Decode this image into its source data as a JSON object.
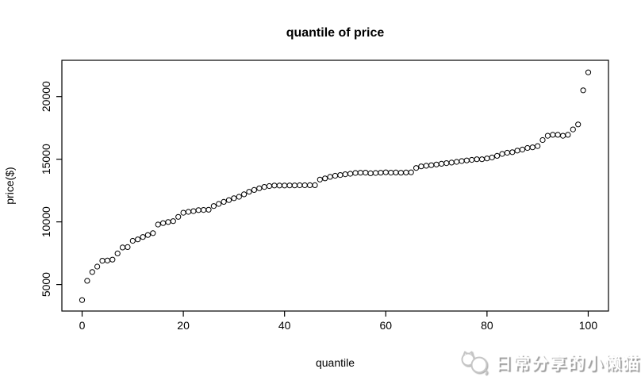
{
  "page": {
    "background_color": "#ffffff",
    "plot_line_color": "#000000"
  },
  "chart_data": {
    "type": "scatter",
    "title": "quantile of price",
    "xlabel": "quantile",
    "ylabel": "price($)",
    "marker": "open-circle",
    "marker_color": "#000000",
    "grid": false,
    "legend": "none",
    "x_ticks": [
      0,
      20,
      40,
      60,
      80,
      100
    ],
    "y_ticks": [
      5000,
      10000,
      15000,
      20000
    ],
    "xlim": [
      -4,
      104
    ],
    "ylim": [
      3033,
      22657
    ],
    "x": [
      0,
      1,
      2,
      3,
      4,
      5,
      6,
      7,
      8,
      9,
      10,
      11,
      12,
      13,
      14,
      15,
      16,
      17,
      18,
      19,
      20,
      21,
      22,
      23,
      24,
      25,
      26,
      27,
      28,
      29,
      30,
      31,
      32,
      33,
      34,
      35,
      36,
      37,
      38,
      39,
      40,
      41,
      42,
      43,
      44,
      45,
      46,
      47,
      48,
      49,
      50,
      51,
      52,
      53,
      54,
      55,
      56,
      57,
      58,
      59,
      60,
      61,
      62,
      63,
      64,
      65,
      66,
      67,
      68,
      69,
      70,
      71,
      72,
      73,
      74,
      75,
      76,
      77,
      78,
      79,
      80,
      81,
      82,
      83,
      84,
      85,
      86,
      87,
      88,
      89,
      90,
      91,
      92,
      93,
      94,
      95,
      96,
      97,
      98,
      99,
      100
    ],
    "y": [
      3760,
      5300,
      6000,
      6430,
      6900,
      6920,
      6990,
      7480,
      7960,
      7990,
      8490,
      8600,
      8790,
      8950,
      9100,
      9790,
      9900,
      9990,
      10060,
      10400,
      10730,
      10800,
      10860,
      10940,
      10950,
      10970,
      11260,
      11430,
      11600,
      11740,
      11890,
      12000,
      12200,
      12400,
      12550,
      12680,
      12790,
      12860,
      12900,
      12900,
      12900,
      12910,
      12910,
      12920,
      12920,
      12930,
      12930,
      13380,
      13470,
      13590,
      13680,
      13740,
      13800,
      13840,
      13900,
      13920,
      13930,
      13880,
      13900,
      13920,
      13950,
      13930,
      13940,
      13920,
      13940,
      13950,
      14300,
      14430,
      14480,
      14520,
      14580,
      14640,
      14690,
      14730,
      14790,
      14850,
      14900,
      14950,
      15000,
      15000,
      15060,
      15140,
      15270,
      15420,
      15520,
      15560,
      15690,
      15770,
      15900,
      15950,
      16050,
      16530,
      16870,
      16950,
      16950,
      16870,
      16950,
      17380,
      17780,
      20500,
      21930
    ]
  },
  "watermark": {
    "text": "日常分享的小懒猫",
    "icon": "wechat-cat-logo",
    "text_color": "#ffffff",
    "shadow_color": "#9e9e9e",
    "icon_color": "#c6c6c6"
  }
}
